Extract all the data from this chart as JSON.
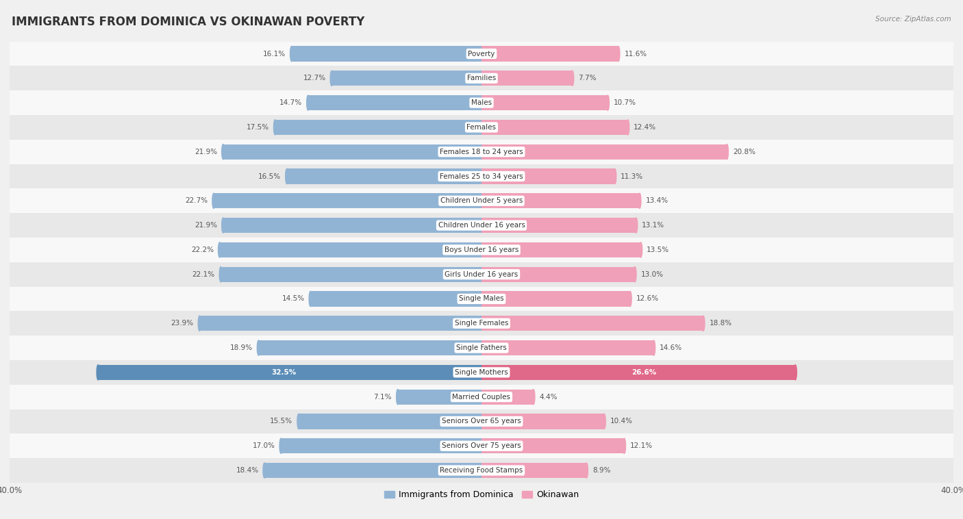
{
  "title": "IMMIGRANTS FROM DOMINICA VS OKINAWAN POVERTY",
  "source": "Source: ZipAtlas.com",
  "categories": [
    "Poverty",
    "Families",
    "Males",
    "Females",
    "Females 18 to 24 years",
    "Females 25 to 34 years",
    "Children Under 5 years",
    "Children Under 16 years",
    "Boys Under 16 years",
    "Girls Under 16 years",
    "Single Males",
    "Single Females",
    "Single Fathers",
    "Single Mothers",
    "Married Couples",
    "Seniors Over 65 years",
    "Seniors Over 75 years",
    "Receiving Food Stamps"
  ],
  "dominica_values": [
    16.1,
    12.7,
    14.7,
    17.5,
    21.9,
    16.5,
    22.7,
    21.9,
    22.2,
    22.1,
    14.5,
    23.9,
    18.9,
    32.5,
    7.1,
    15.5,
    17.0,
    18.4
  ],
  "okinawan_values": [
    11.6,
    7.7,
    10.7,
    12.4,
    20.8,
    11.3,
    13.4,
    13.1,
    13.5,
    13.0,
    12.6,
    18.8,
    14.6,
    26.6,
    4.4,
    10.4,
    12.1,
    8.9
  ],
  "dominica_color": "#92b4d4",
  "okinawan_color": "#f0a0b8",
  "highlight_dominica_color": "#5b8db8",
  "highlight_okinawan_color": "#e06888",
  "highlight_index": 13,
  "xlim": 40.0,
  "background_color": "#f0f0f0",
  "row_bg_even": "#f8f8f8",
  "row_bg_odd": "#e8e8e8",
  "title_fontsize": 12,
  "value_fontsize": 7.5,
  "category_fontsize": 7.5,
  "legend_dominica": "Immigrants from Dominica",
  "legend_okinawan": "Okinawan"
}
